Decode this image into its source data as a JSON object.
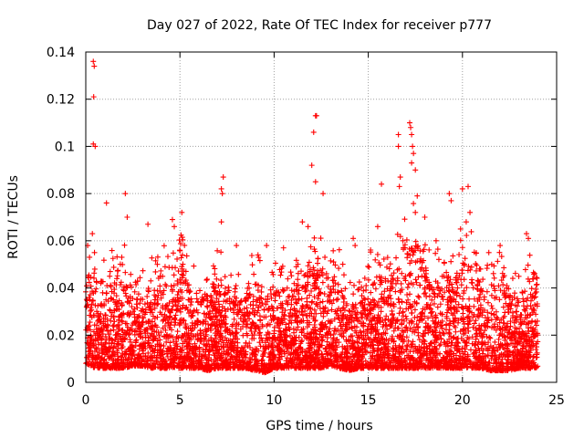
{
  "chart_data": {
    "type": "scatter",
    "title": "Day 027 of 2022, Rate Of TEC Index for receiver p777",
    "xlabel": "GPS time / hours",
    "ylabel": "ROTI / TECUs",
    "xlim": [
      0,
      25
    ],
    "ylim": [
      0,
      0.14
    ],
    "x_ticks": [
      "0",
      "5",
      "10",
      "15",
      "20",
      "25"
    ],
    "y_ticks": [
      "0",
      "0.02",
      "0.04",
      "0.06",
      "0.08",
      "0.1",
      "0.12",
      "0.14"
    ],
    "grid": true,
    "marker": "plus",
    "color": "#ff0000",
    "envelope": {
      "description_hours": [
        0,
        24
      ],
      "x": [
        0.0,
        0.5,
        1.0,
        1.5,
        2.0,
        2.5,
        3.0,
        3.5,
        4.0,
        4.5,
        5.0,
        5.5,
        6.0,
        6.5,
        7.0,
        7.5,
        8.0,
        8.5,
        9.0,
        9.5,
        10.0,
        10.5,
        11.0,
        11.5,
        12.0,
        12.5,
        13.0,
        13.5,
        14.0,
        14.5,
        15.0,
        15.5,
        16.0,
        16.5,
        17.0,
        17.5,
        18.0,
        18.5,
        19.0,
        19.5,
        20.0,
        20.5,
        21.0,
        21.5,
        22.0,
        22.5,
        23.0,
        23.5,
        24.0
      ],
      "typical_max": [
        0.045,
        0.05,
        0.04,
        0.045,
        0.05,
        0.03,
        0.035,
        0.045,
        0.05,
        0.04,
        0.055,
        0.04,
        0.035,
        0.04,
        0.045,
        0.04,
        0.035,
        0.04,
        0.045,
        0.035,
        0.04,
        0.04,
        0.04,
        0.045,
        0.05,
        0.05,
        0.045,
        0.045,
        0.03,
        0.04,
        0.045,
        0.045,
        0.045,
        0.05,
        0.06,
        0.065,
        0.05,
        0.045,
        0.045,
        0.045,
        0.05,
        0.055,
        0.045,
        0.04,
        0.045,
        0.04,
        0.035,
        0.045,
        0.045
      ],
      "typical_min": [
        0.008,
        0.006,
        0.006,
        0.006,
        0.006,
        0.007,
        0.007,
        0.006,
        0.006,
        0.006,
        0.006,
        0.006,
        0.006,
        0.005,
        0.006,
        0.006,
        0.006,
        0.006,
        0.005,
        0.004,
        0.006,
        0.006,
        0.006,
        0.006,
        0.006,
        0.006,
        0.007,
        0.006,
        0.005,
        0.006,
        0.006,
        0.006,
        0.006,
        0.006,
        0.006,
        0.006,
        0.006,
        0.006,
        0.006,
        0.006,
        0.006,
        0.006,
        0.006,
        0.005,
        0.005,
        0.005,
        0.006,
        0.006,
        0.006
      ]
    },
    "peaks": [
      {
        "x": 0.4,
        "y": 0.136
      },
      {
        "x": 0.45,
        "y": 0.134
      },
      {
        "x": 0.42,
        "y": 0.121
      },
      {
        "x": 0.4,
        "y": 0.101
      },
      {
        "x": 0.5,
        "y": 0.1
      },
      {
        "x": 1.1,
        "y": 0.076
      },
      {
        "x": 2.1,
        "y": 0.08
      },
      {
        "x": 2.2,
        "y": 0.07
      },
      {
        "x": 3.3,
        "y": 0.067
      },
      {
        "x": 4.6,
        "y": 0.069
      },
      {
        "x": 4.7,
        "y": 0.066
      },
      {
        "x": 5.1,
        "y": 0.072
      },
      {
        "x": 7.3,
        "y": 0.087
      },
      {
        "x": 7.2,
        "y": 0.082
      },
      {
        "x": 7.25,
        "y": 0.08
      },
      {
        "x": 7.2,
        "y": 0.068
      },
      {
        "x": 12.2,
        "y": 0.113
      },
      {
        "x": 12.25,
        "y": 0.113
      },
      {
        "x": 12.1,
        "y": 0.106
      },
      {
        "x": 12.0,
        "y": 0.092
      },
      {
        "x": 12.2,
        "y": 0.085
      },
      {
        "x": 12.6,
        "y": 0.08
      },
      {
        "x": 11.8,
        "y": 0.066
      },
      {
        "x": 11.5,
        "y": 0.068
      },
      {
        "x": 15.7,
        "y": 0.084
      },
      {
        "x": 16.6,
        "y": 0.105
      },
      {
        "x": 16.6,
        "y": 0.1
      },
      {
        "x": 16.7,
        "y": 0.087
      },
      {
        "x": 16.65,
        "y": 0.083
      },
      {
        "x": 17.2,
        "y": 0.11
      },
      {
        "x": 17.25,
        "y": 0.108
      },
      {
        "x": 17.3,
        "y": 0.105
      },
      {
        "x": 17.35,
        "y": 0.1
      },
      {
        "x": 17.4,
        "y": 0.097
      },
      {
        "x": 17.3,
        "y": 0.093
      },
      {
        "x": 17.5,
        "y": 0.09
      },
      {
        "x": 17.6,
        "y": 0.079
      },
      {
        "x": 17.5,
        "y": 0.072
      },
      {
        "x": 18.0,
        "y": 0.07
      },
      {
        "x": 19.3,
        "y": 0.08
      },
      {
        "x": 19.4,
        "y": 0.077
      },
      {
        "x": 20.0,
        "y": 0.082
      },
      {
        "x": 20.3,
        "y": 0.083
      },
      {
        "x": 20.4,
        "y": 0.072
      },
      {
        "x": 20.2,
        "y": 0.068
      },
      {
        "x": 22.0,
        "y": 0.058
      },
      {
        "x": 23.4,
        "y": 0.063
      },
      {
        "x": 23.5,
        "y": 0.061
      },
      {
        "x": 14.2,
        "y": 0.061
      },
      {
        "x": 14.3,
        "y": 0.058
      },
      {
        "x": 9.6,
        "y": 0.058
      },
      {
        "x": 8.0,
        "y": 0.058
      },
      {
        "x": 10.5,
        "y": 0.057
      },
      {
        "x": 15.5,
        "y": 0.066
      },
      {
        "x": 0.2,
        "y": 0.053
      },
      {
        "x": 0.35,
        "y": 0.063
      },
      {
        "x": 3.8,
        "y": 0.05
      },
      {
        "x": 19.9,
        "y": 0.065
      },
      {
        "x": 18.6,
        "y": 0.06
      },
      {
        "x": 21.4,
        "y": 0.055
      }
    ]
  }
}
